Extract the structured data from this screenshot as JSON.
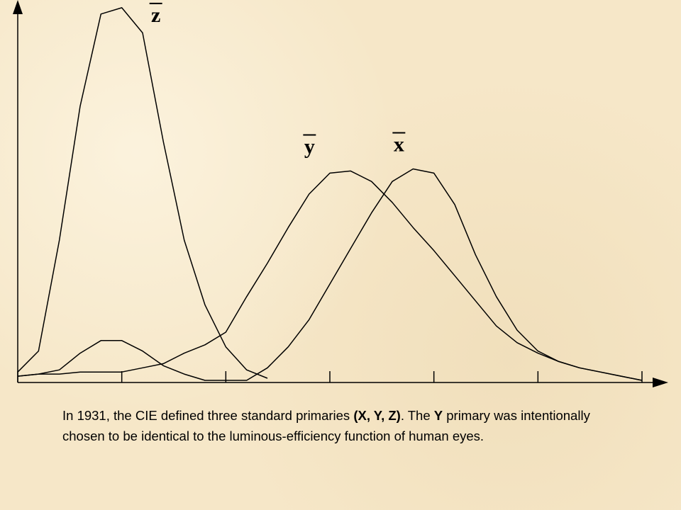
{
  "chart_data": {
    "type": "line",
    "x": [
      400,
      410,
      420,
      430,
      440,
      450,
      460,
      470,
      480,
      490,
      500,
      510,
      520,
      530,
      540,
      550,
      560,
      570,
      580,
      590,
      600,
      610,
      620,
      630,
      640,
      650,
      660,
      670,
      680,
      690,
      700
    ],
    "xlim": [
      400,
      700
    ],
    "xticks": [
      400,
      500,
      600,
      700
    ],
    "minor_xticks": [
      450,
      550,
      650
    ],
    "ylim": [
      0,
      1.8
    ],
    "series": [
      {
        "name": "z",
        "color": "#000000",
        "values": [
          0.04,
          0.14,
          0.67,
          1.31,
          1.75,
          1.78,
          1.66,
          1.14,
          0.67,
          0.36,
          0.16,
          0.05,
          0.01,
          null,
          null,
          null,
          null,
          null,
          null,
          null,
          null,
          null,
          null,
          null,
          null,
          null,
          null,
          null,
          null,
          null,
          null
        ]
      },
      {
        "name": "y",
        "color": "#000000",
        "values": [
          0.02,
          0.03,
          0.03,
          0.04,
          0.04,
          0.04,
          0.06,
          0.08,
          0.13,
          0.17,
          0.23,
          0.4,
          0.56,
          0.73,
          0.89,
          0.99,
          1.0,
          0.95,
          0.85,
          0.73,
          0.62,
          0.5,
          0.38,
          0.26,
          0.18,
          0.13,
          0.09,
          0.06,
          0.04,
          0.02,
          0
        ]
      },
      {
        "name": "x",
        "color": "#000000",
        "values": [
          0.02,
          0.03,
          0.05,
          0.13,
          0.19,
          0.19,
          0.14,
          0.07,
          0.03,
          0,
          0,
          0,
          0.06,
          0.16,
          0.29,
          0.46,
          0.63,
          0.8,
          0.95,
          1.01,
          0.99,
          0.84,
          0.6,
          0.4,
          0.24,
          0.14,
          0.09,
          0.06,
          0.04,
          0.02,
          0
        ]
      }
    ],
    "caption": [
      "In 1931, the CIE defined three standard primaries ",
      "(X, Y, Z)",
      ". The ",
      "Y",
      " primary was intentionally chosen to be identical to the luminous-efficiency function of human eyes."
    ],
    "caption_bold": [
      1,
      3
    ]
  }
}
